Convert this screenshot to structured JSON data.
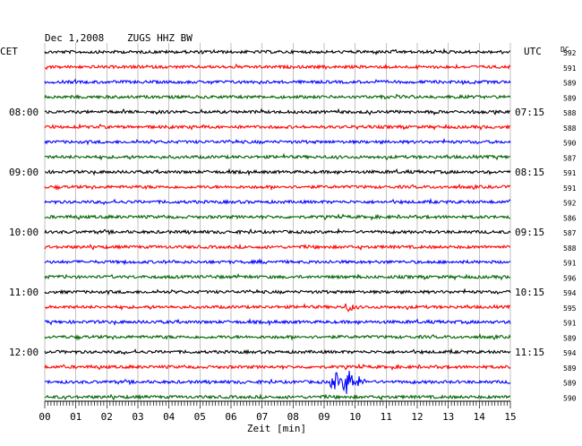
{
  "header": {
    "date": "Dec 1,2008",
    "station": "ZUGS HHZ BW",
    "left_zone": "CET",
    "right_zone": "UTC",
    "dc_label": "DC"
  },
  "colors": {
    "trace_cycle": [
      "#000000",
      "#ff0000",
      "#0000ff",
      "#006400"
    ],
    "grid": "#999999",
    "text": "#000000"
  },
  "chart_data": {
    "type": "line",
    "title": "Dec 1,2008   ZUGS HHZ BW",
    "xlabel": "Zeit [min]",
    "ylabel": "",
    "xlim": [
      0,
      15
    ],
    "x_ticks": [
      "00",
      "01",
      "02",
      "03",
      "04",
      "05",
      "06",
      "07",
      "08",
      "09",
      "10",
      "11",
      "12",
      "13",
      "14",
      "15"
    ],
    "rows_per_hour": 4,
    "left_hour_labels": [
      "08:00",
      "09:00",
      "10:00",
      "11:00",
      "12:00"
    ],
    "right_hour_labels": [
      "07:15",
      "08:15",
      "09:15",
      "10:15",
      "11:15"
    ],
    "hour_label_rows": [
      4,
      8,
      12,
      16,
      20
    ],
    "dc_values": [
      592,
      591,
      589,
      589,
      588,
      588,
      590,
      587,
      591,
      591,
      592,
      586,
      587,
      588,
      591,
      596,
      594,
      595,
      591,
      589,
      594,
      589,
      589,
      590
    ],
    "events": [
      {
        "row": 17,
        "x_start_min": 9.6,
        "x_end_min": 10.0,
        "kind": "small arrival"
      },
      {
        "row": 22,
        "x_start_min": 9.2,
        "x_end_min": 11.0,
        "kind": "local earthquake"
      }
    ],
    "grid": true
  }
}
